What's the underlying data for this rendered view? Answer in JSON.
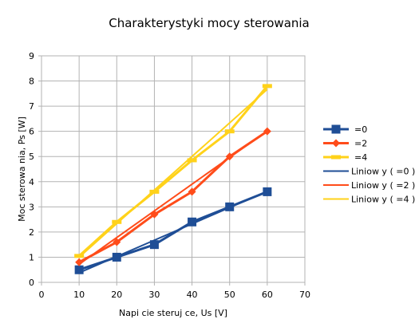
{
  "chart_data": {
    "type": "line",
    "title": "Charakterystyki mocy sterowania",
    "xlabel": "Napi cie steruj ce, Us [V]",
    "ylabel": "Moc sterowa nia, Ps [W]",
    "xlim": [
      0,
      70
    ],
    "ylim": [
      0,
      9
    ],
    "x_ticks": [
      "0",
      "10",
      "20",
      "30",
      "40",
      "50",
      "60",
      "70"
    ],
    "y_ticks": [
      "0",
      "1",
      "2",
      "3",
      "4",
      "5",
      "6",
      "7",
      "8",
      "9"
    ],
    "grid": true,
    "legend_position": "right",
    "series": [
      {
        "name": "=0",
        "color": "#1f4e96",
        "marker": "square",
        "x": [
          10,
          20,
          30,
          40,
          50,
          60
        ],
        "y": [
          0.5,
          1.0,
          1.5,
          2.4,
          3.0,
          3.6
        ]
      },
      {
        "name": "=2",
        "color": "#ff4c1a",
        "marker": "diamond",
        "x": [
          10,
          20,
          30,
          40,
          50,
          60
        ],
        "y": [
          0.8,
          1.6,
          2.7,
          3.6,
          5.0,
          6.0
        ]
      },
      {
        "name": "=4",
        "color": "#ffd21a",
        "marker": "bar",
        "x": [
          10,
          20,
          30,
          40,
          50,
          60
        ],
        "y": [
          1.05,
          2.4,
          3.6,
          4.85,
          6.0,
          7.8
        ]
      }
    ],
    "trendlines": [
      {
        "name": "Liniow y (   =0  )",
        "color": "#1f4e96",
        "x": [
          10,
          60
        ],
        "y": [
          0.38,
          3.62
        ]
      },
      {
        "name": "Liniow y (   =2  )",
        "color": "#ff4c1a",
        "x": [
          10,
          60
        ],
        "y": [
          0.72,
          6.02
        ]
      },
      {
        "name": "Liniow y (   =4  )",
        "color": "#ffd21a",
        "x": [
          10,
          60
        ],
        "y": [
          1.0,
          7.67
        ]
      }
    ]
  }
}
